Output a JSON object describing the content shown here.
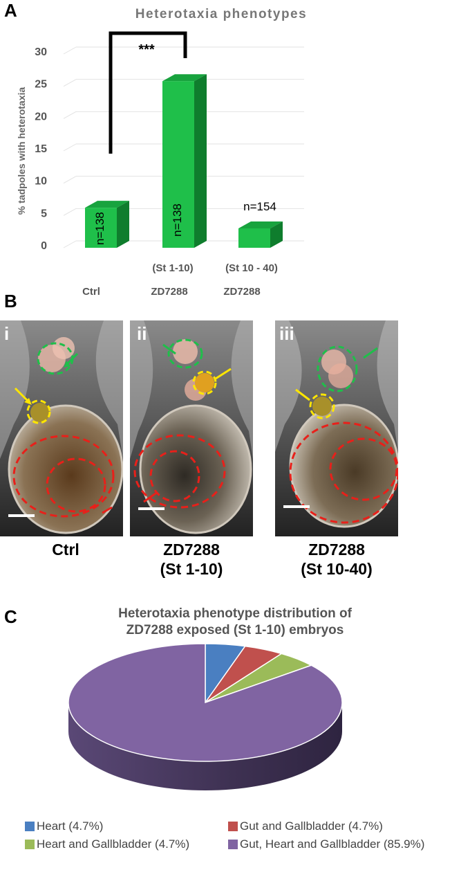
{
  "panels": {
    "a": "A",
    "b": "B",
    "c": "C"
  },
  "chart_data": [
    {
      "type": "bar",
      "title": "Heterotaxia phenotypes",
      "ylabel": "% tadpoles with heterotaxia",
      "ylim": [
        0,
        30
      ],
      "yticks": [
        "0",
        "5",
        "10",
        "15",
        "20",
        "25",
        "30"
      ],
      "categories": [
        "Ctrl",
        "ZD7288",
        "ZD7288"
      ],
      "sublabels": [
        "",
        "(St 1-10)",
        "(St 10 - 40)"
      ],
      "values": [
        6.2,
        25.8,
        3.0
      ],
      "bar_labels": [
        "n=138",
        "n=138",
        "n=154"
      ],
      "significance": "***",
      "color": "#1fbf4a",
      "grid": true
    },
    {
      "type": "pie",
      "title": [
        "Heterotaxia phenotype distribution of",
        "ZD7288 exposed (St 1-10) embryos"
      ],
      "slices": [
        {
          "label": "Heart (4.7%)",
          "value": 4.7,
          "color": "#4a7fc1"
        },
        {
          "label": "Gut and Gallbladder (4.7%)",
          "value": 4.7,
          "color": "#c0504d"
        },
        {
          "label": "Heart and Gallbladder (4.7%)",
          "value": 4.7,
          "color": "#9bbb59"
        },
        {
          "label": "Gut, Heart and Gallbladder (85.9%)",
          "value": 85.9,
          "color": "#8064a2"
        }
      ]
    }
  ],
  "micrographs": [
    {
      "label": "i",
      "caption": [
        "Ctrl"
      ]
    },
    {
      "label": "ii",
      "caption": [
        "ZD7288",
        "(St 1-10)"
      ]
    },
    {
      "label": "iii",
      "caption": [
        "ZD7288",
        "(St 10-40)"
      ]
    }
  ]
}
